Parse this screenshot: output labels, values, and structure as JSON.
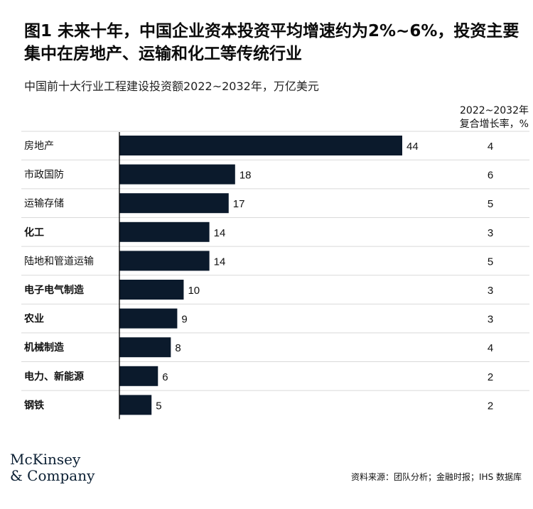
{
  "title": "图1 未来十年，中国企业资本投资平均增速约为2%~6%，投资主要集中在房地产、运输和化工等传统行业",
  "subtitle": "中国前十大行业工程建设投资额2022~2032年，万亿美元",
  "growth_column_header": [
    "2022~2032年",
    "复合增长率，%"
  ],
  "brand": [
    "McKinsey",
    "& Company"
  ],
  "source": "资料来源：团队分析；金融时报；IHS 数据库",
  "colors": {
    "bar": "#0b1a2c",
    "separator": "#d9d9d9",
    "axis": "#000000"
  },
  "chart_data": {
    "type": "bar",
    "orientation": "horizontal",
    "categories": [
      "房地产",
      "市政国防",
      "运输存储",
      "化工",
      "陆地和管道运输",
      "电子电气制造",
      "农业",
      "机械制造",
      "电力、新能源",
      "钢铁"
    ],
    "values": [
      44,
      18,
      17,
      14,
      14,
      10,
      9,
      8,
      6,
      5
    ],
    "growth_rates": [
      4,
      6,
      5,
      3,
      5,
      3,
      3,
      4,
      2,
      2
    ],
    "bold_categories": [
      false,
      false,
      false,
      true,
      false,
      true,
      true,
      true,
      true,
      true
    ],
    "xlim": [
      0,
      44
    ],
    "grid": false,
    "legend": "none"
  }
}
